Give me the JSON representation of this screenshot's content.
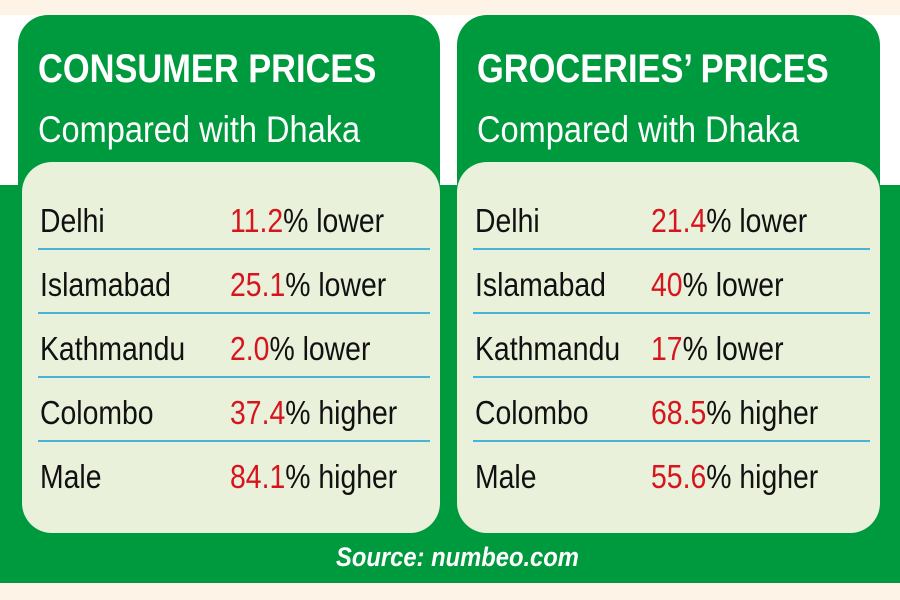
{
  "chart_data": {
    "type": "table",
    "source": "Source: numbeo.com",
    "tables": [
      {
        "title": "CONSUMER PRICES",
        "subtitle": "Compared with Dhaka",
        "rows": [
          {
            "city": "Delhi",
            "value": "11.2",
            "suffix": "% lower"
          },
          {
            "city": "Islamabad",
            "value": "25.1",
            "suffix": "% lower"
          },
          {
            "city": "Kathmandu",
            "value": "2.0",
            "suffix": "% lower"
          },
          {
            "city": "Colombo",
            "value": "37.4",
            "suffix": "% higher"
          },
          {
            "city": "Male",
            "value": "84.1",
            "suffix": "% higher"
          }
        ]
      },
      {
        "title": "GROCERIES’ PRICES",
        "subtitle": "Compared with Dhaka",
        "rows": [
          {
            "city": "Delhi",
            "value": "21.4",
            "suffix": "% lower"
          },
          {
            "city": "Islamabad",
            "value": "40",
            "suffix": "% lower"
          },
          {
            "city": "Kathmandu",
            "value": "17",
            "suffix": "% lower"
          },
          {
            "city": "Colombo",
            "value": "68.5",
            "suffix": "% higher"
          },
          {
            "city": "Male",
            "value": "55.6",
            "suffix": "% higher"
          }
        ]
      }
    ]
  },
  "colors": {
    "green": "#009a3e",
    "box": "#e9f1da",
    "highlight": "#d7151f",
    "divider": "#4bb3d8"
  }
}
